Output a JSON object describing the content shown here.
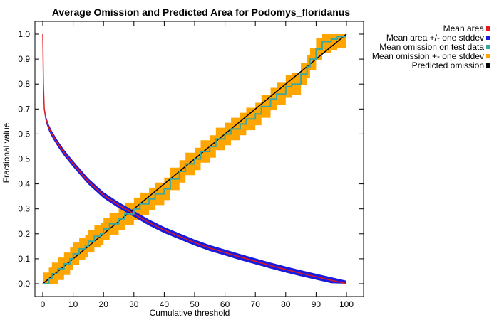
{
  "chart_data": {
    "type": "line",
    "title": "Average Omission and Predicted Area for Podomys_floridanus",
    "xlabel": "Cumulative threshold",
    "ylabel": "Fractional value",
    "xlim": [
      0,
      100
    ],
    "ylim": [
      0,
      1
    ],
    "xticks": [
      0,
      10,
      20,
      30,
      40,
      50,
      60,
      70,
      80,
      90,
      100
    ],
    "yticks": [
      0.0,
      0.1,
      0.2,
      0.3,
      0.4,
      0.5,
      0.6,
      0.7,
      0.8,
      0.9,
      1.0
    ],
    "xtick_labels": [
      "0",
      "10",
      "20",
      "30",
      "40",
      "50",
      "60",
      "70",
      "80",
      "90",
      "100"
    ],
    "ytick_labels": [
      "0.0",
      "0.1",
      "0.2",
      "0.3",
      "0.4",
      "0.5",
      "0.6",
      "0.7",
      "0.8",
      "0.9",
      "1.0"
    ],
    "grid": false,
    "legend_position": "outside-top-right",
    "series": [
      {
        "name": "Mean area",
        "color": "#e41a1c",
        "x": [
          0,
          0.2,
          0.5,
          1,
          2,
          3,
          5,
          7,
          10,
          15,
          20,
          25,
          30,
          35,
          40,
          45,
          50,
          55,
          60,
          65,
          70,
          75,
          80,
          85,
          90,
          95,
          100
        ],
        "y": [
          1.0,
          0.8,
          0.7,
          0.66,
          0.625,
          0.6,
          0.56,
          0.525,
          0.48,
          0.41,
          0.355,
          0.315,
          0.28,
          0.245,
          0.215,
          0.19,
          0.165,
          0.143,
          0.125,
          0.107,
          0.09,
          0.073,
          0.057,
          0.042,
          0.028,
          0.014,
          0.0
        ]
      },
      {
        "name": "Mean area +/- one stddev",
        "color": "#1a1adc",
        "band_width": 0.012
      },
      {
        "name": "Mean omission on test data",
        "color": "#3aa8a0",
        "x": [
          0,
          2,
          3,
          5,
          7,
          9,
          10,
          12,
          14,
          15,
          17,
          19,
          20,
          22,
          25,
          27,
          30,
          32,
          35,
          37,
          40,
          42,
          45,
          47,
          50,
          52,
          55,
          57,
          60,
          62,
          65,
          67,
          70,
          72,
          75,
          77,
          80,
          82,
          85,
          87,
          88,
          90,
          92,
          95,
          97,
          100
        ],
        "y": [
          0.0,
          0.02,
          0.04,
          0.06,
          0.08,
          0.1,
          0.12,
          0.14,
          0.15,
          0.17,
          0.19,
          0.2,
          0.22,
          0.24,
          0.26,
          0.28,
          0.3,
          0.32,
          0.34,
          0.36,
          0.38,
          0.42,
          0.45,
          0.48,
          0.5,
          0.53,
          0.55,
          0.58,
          0.6,
          0.62,
          0.64,
          0.66,
          0.68,
          0.71,
          0.74,
          0.76,
          0.79,
          0.8,
          0.84,
          0.87,
          0.9,
          0.94,
          0.97,
          0.98,
          0.99,
          0.99
        ]
      },
      {
        "name": "Mean omission +- one stddev",
        "color": "#ffa500",
        "band_width": 0.045
      },
      {
        "name": "Predicted omission",
        "color": "#000000",
        "x": [
          0,
          100
        ],
        "y": [
          0,
          1
        ]
      }
    ]
  }
}
